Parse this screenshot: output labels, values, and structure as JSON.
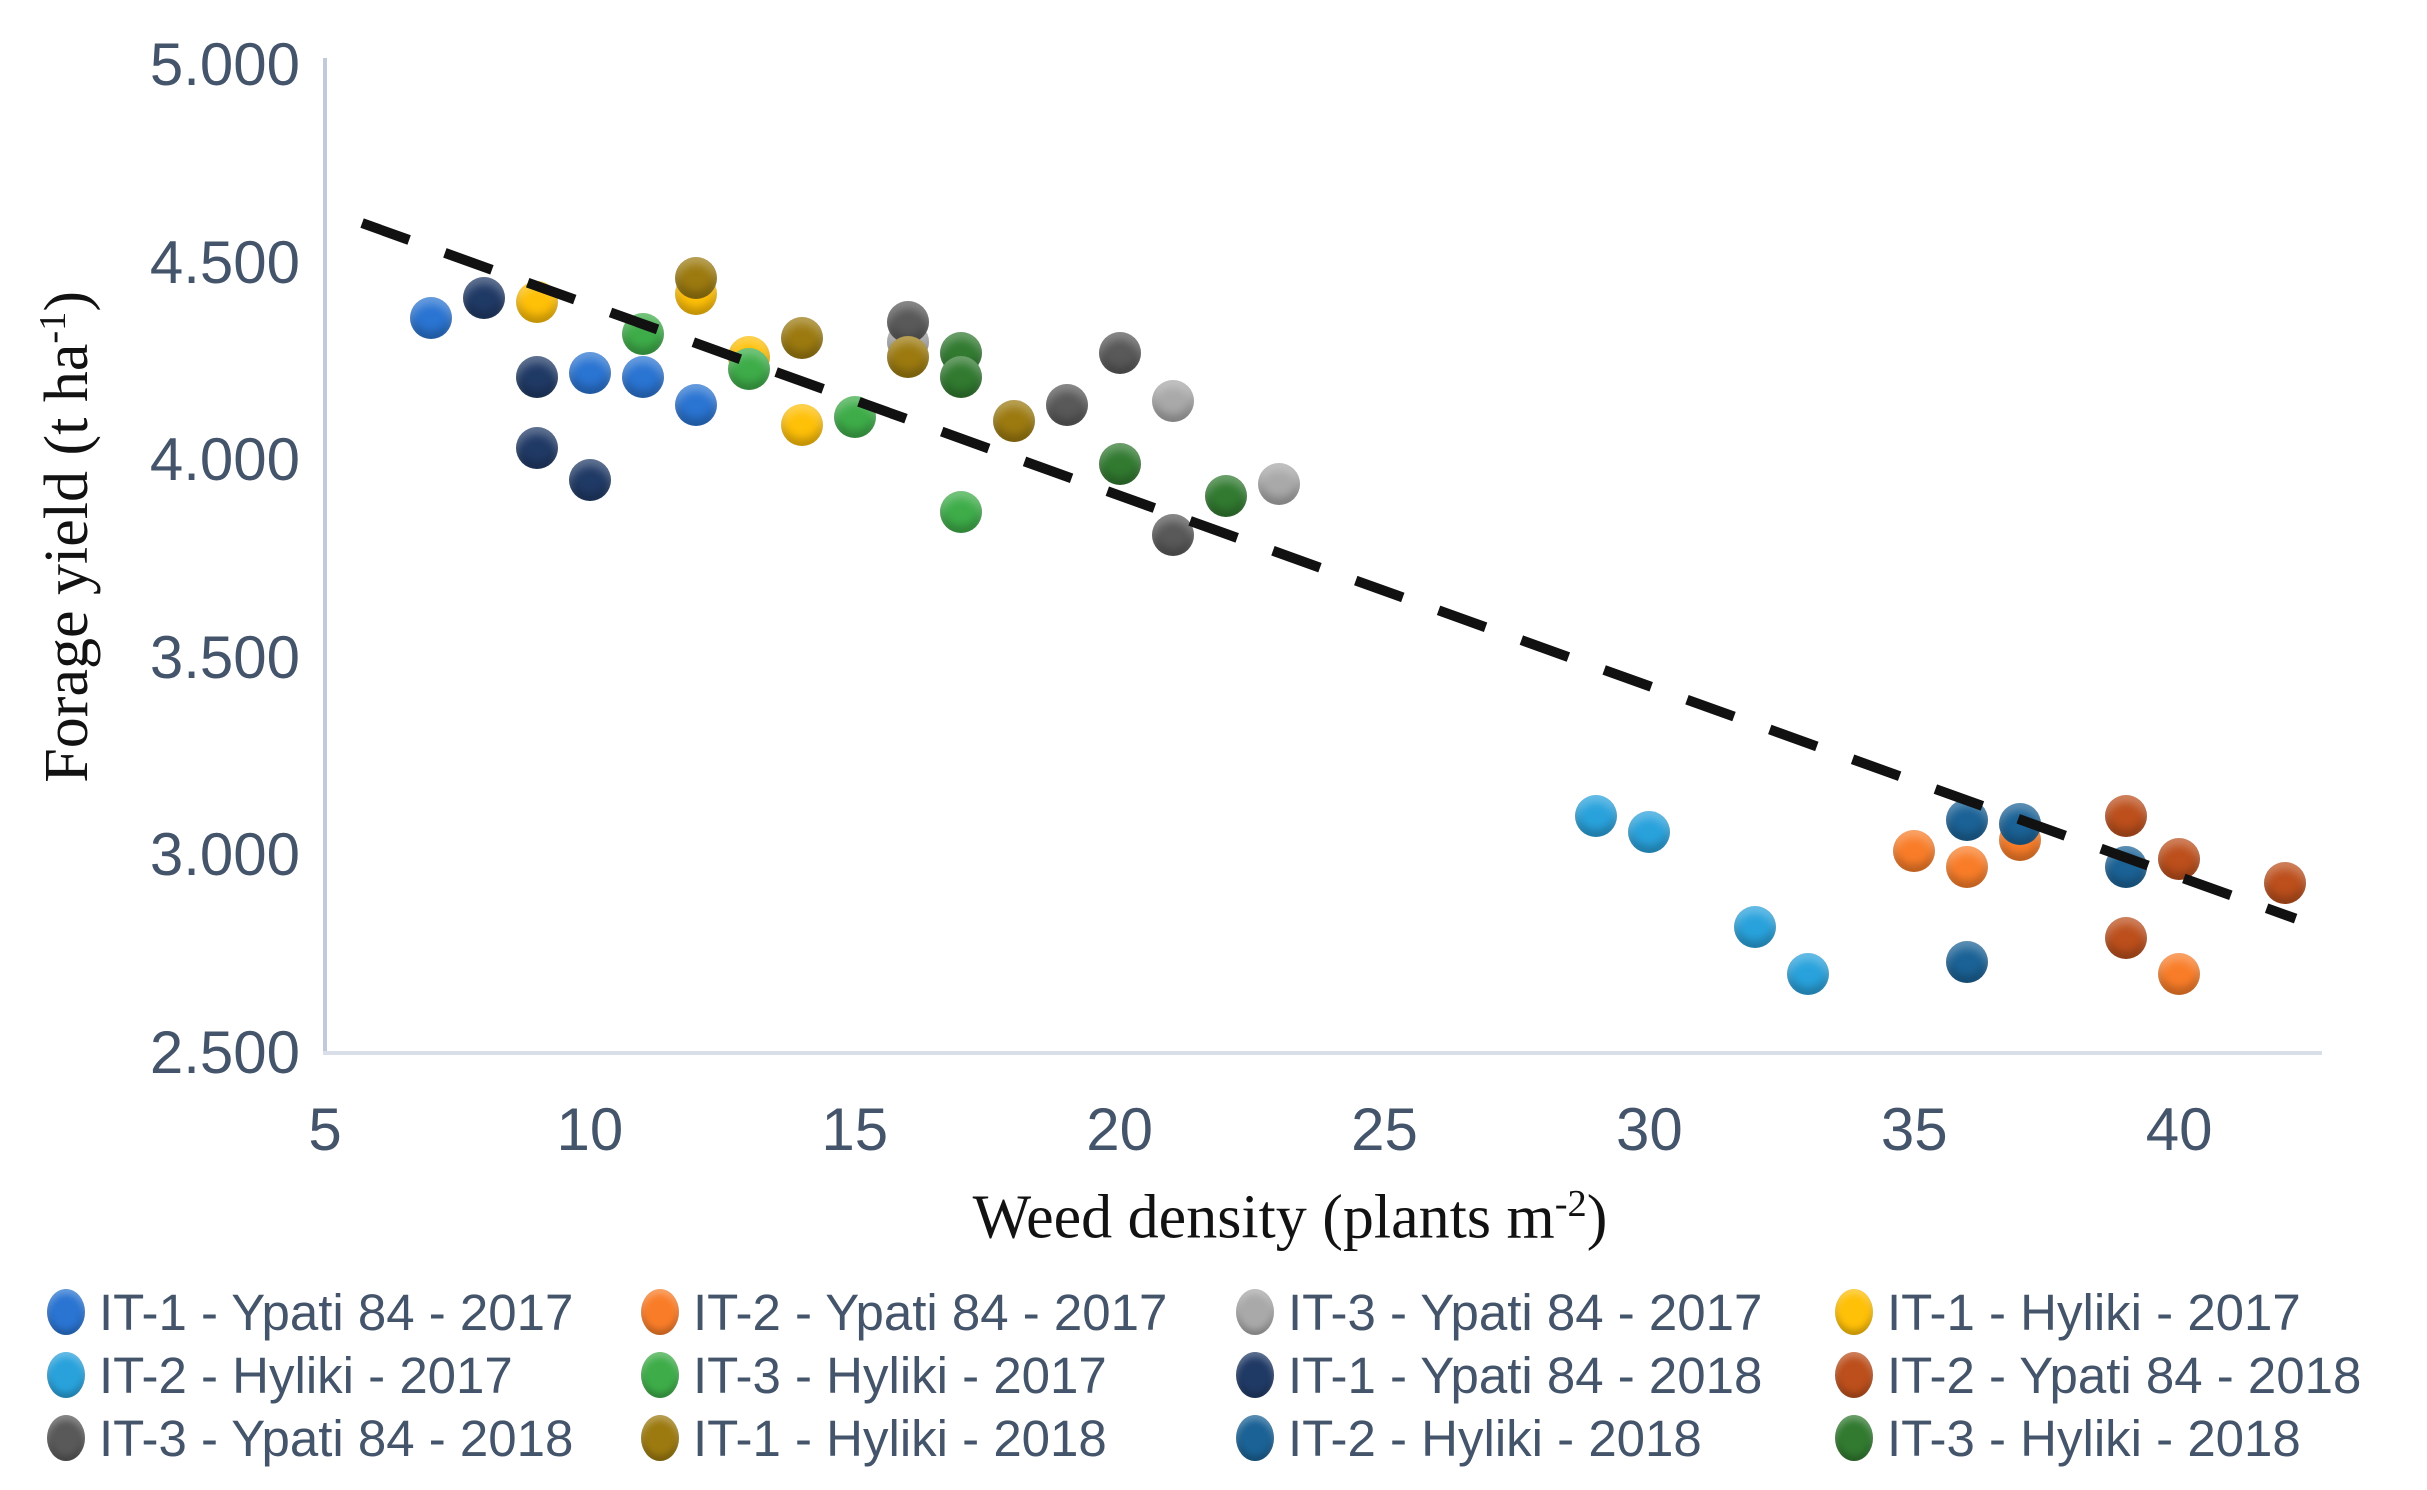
{
  "chart_data": {
    "type": "scatter",
    "title": "",
    "xlabel": {
      "main": "Weed density (plants m",
      "sup": "-2",
      "suffix": ")"
    },
    "ylabel": {
      "main": "Forage yield (t ha",
      "sup": "-1",
      "suffix": ")"
    },
    "xlim": [
      5,
      43
    ],
    "ylim": [
      2.5,
      5.0
    ],
    "grid": false,
    "legend_position": "bottom",
    "x_ticks": [
      {
        "label": "5",
        "value": 5
      },
      {
        "label": "10",
        "value": 10
      },
      {
        "label": "15",
        "value": 15
      },
      {
        "label": "20",
        "value": 20
      },
      {
        "label": "25",
        "value": 25
      },
      {
        "label": "30",
        "value": 30
      },
      {
        "label": "35",
        "value": 35
      },
      {
        "label": "40",
        "value": 40
      }
    ],
    "y_ticks": [
      {
        "label": "5.000",
        "value": 5.0
      },
      {
        "label": "4.500",
        "value": 4.5
      },
      {
        "label": "4.000",
        "value": 4.0
      },
      {
        "label": "3.500",
        "value": 3.5
      },
      {
        "label": "3.000",
        "value": 3.0
      },
      {
        "label": "2.500",
        "value": 2.5
      }
    ],
    "series": [
      {
        "name": "IT-1 - Ypati 84 - 2017",
        "color": "#2A74D2",
        "points": [
          [
            7,
            4.36
          ],
          [
            10,
            4.22
          ],
          [
            11,
            4.21
          ],
          [
            12,
            4.14
          ]
        ]
      },
      {
        "name": "IT-2 - Ypati 84 - 2017",
        "color": "#F97D29",
        "points": [
          [
            35,
            3.01
          ],
          [
            36,
            2.97
          ],
          [
            37,
            3.04
          ],
          [
            40,
            2.7
          ]
        ]
      },
      {
        "name": "IT-3 - Ypati 84 - 2017",
        "color": "#A9A9A9",
        "points": [
          [
            16,
            4.3
          ],
          [
            21,
            4.15
          ],
          [
            23,
            3.94
          ]
        ]
      },
      {
        "name": "IT-1 - Hyliki - 2017",
        "color": "#FFC008",
        "points": [
          [
            9,
            4.4
          ],
          [
            12,
            4.42
          ],
          [
            13,
            4.26
          ],
          [
            14,
            4.09
          ]
        ]
      },
      {
        "name": "IT-2 - Hyliki - 2017",
        "color": "#29A2DC",
        "points": [
          [
            29,
            3.1
          ],
          [
            30,
            3.06
          ],
          [
            32,
            2.82
          ],
          [
            33,
            2.7
          ]
        ]
      },
      {
        "name": "IT-3 - Hyliki - 2017",
        "color": "#3EAD49",
        "points": [
          [
            11,
            4.32
          ],
          [
            13,
            4.23
          ],
          [
            15,
            4.11
          ],
          [
            17,
            3.87
          ]
        ]
      },
      {
        "name": "IT-1 - Ypati 84 - 2018",
        "color": "#203A66",
        "points": [
          [
            8,
            4.41
          ],
          [
            9,
            4.21
          ],
          [
            9,
            4.03
          ],
          [
            10,
            3.95
          ]
        ]
      },
      {
        "name": "IT-2 - Ypati 84 - 2018",
        "color": "#BC4F1C",
        "points": [
          [
            39,
            3.1
          ],
          [
            40,
            2.99
          ],
          [
            42,
            2.93
          ],
          [
            39,
            2.79
          ]
        ]
      },
      {
        "name": "IT-3 - Ypati 84 - 2018",
        "color": "#595959",
        "points": [
          [
            16,
            4.35
          ],
          [
            19,
            4.14
          ],
          [
            20,
            4.27
          ],
          [
            21,
            3.81
          ]
        ]
      },
      {
        "name": "IT-1 - Hyliki - 2018",
        "color": "#9C7A10",
        "points": [
          [
            12,
            4.46
          ],
          [
            14,
            4.31
          ],
          [
            16,
            4.26
          ],
          [
            18,
            4.1
          ]
        ]
      },
      {
        "name": "IT-2 - Hyliki - 2018",
        "color": "#1B6296",
        "points": [
          [
            36,
            3.09
          ],
          [
            37,
            3.08
          ],
          [
            39,
            2.97
          ],
          [
            36,
            2.73
          ]
        ]
      },
      {
        "name": "IT-3 - Hyliki - 2018",
        "color": "#317A30",
        "points": [
          [
            17,
            4.27
          ],
          [
            17,
            4.21
          ],
          [
            20,
            3.99
          ],
          [
            22,
            3.91
          ]
        ]
      }
    ],
    "trendline": {
      "style": "dashed",
      "color": "#111111",
      "x1": 5.7,
      "y1": 4.6,
      "x2": 42.2,
      "y2": 2.84
    }
  },
  "colors": {
    "axis_line": "#BFCBDB",
    "tick_text": "#44546A",
    "legend_text": "#44546A"
  }
}
